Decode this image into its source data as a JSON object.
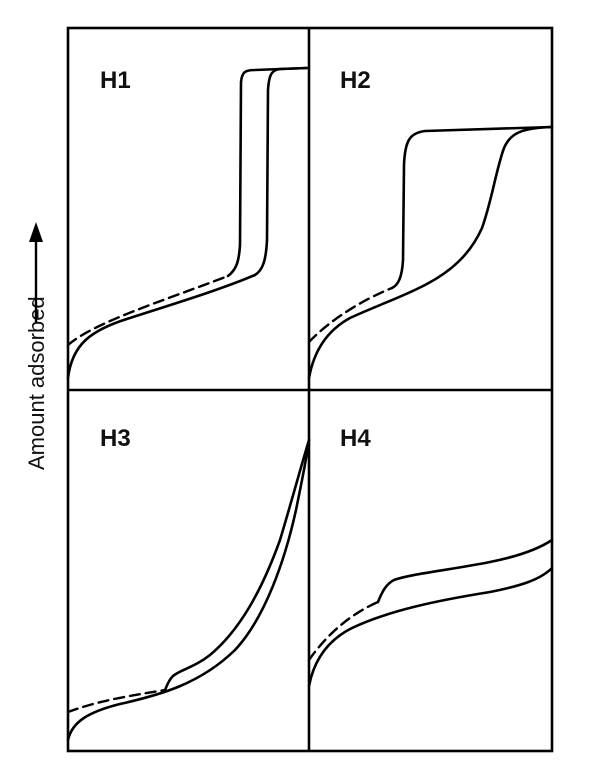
{
  "figure": {
    "y_axis_label": "Amount adsorbed",
    "panels": [
      {
        "label": "H1"
      },
      {
        "label": "H2"
      },
      {
        "label": "H3"
      },
      {
        "label": "H4"
      }
    ]
  }
}
